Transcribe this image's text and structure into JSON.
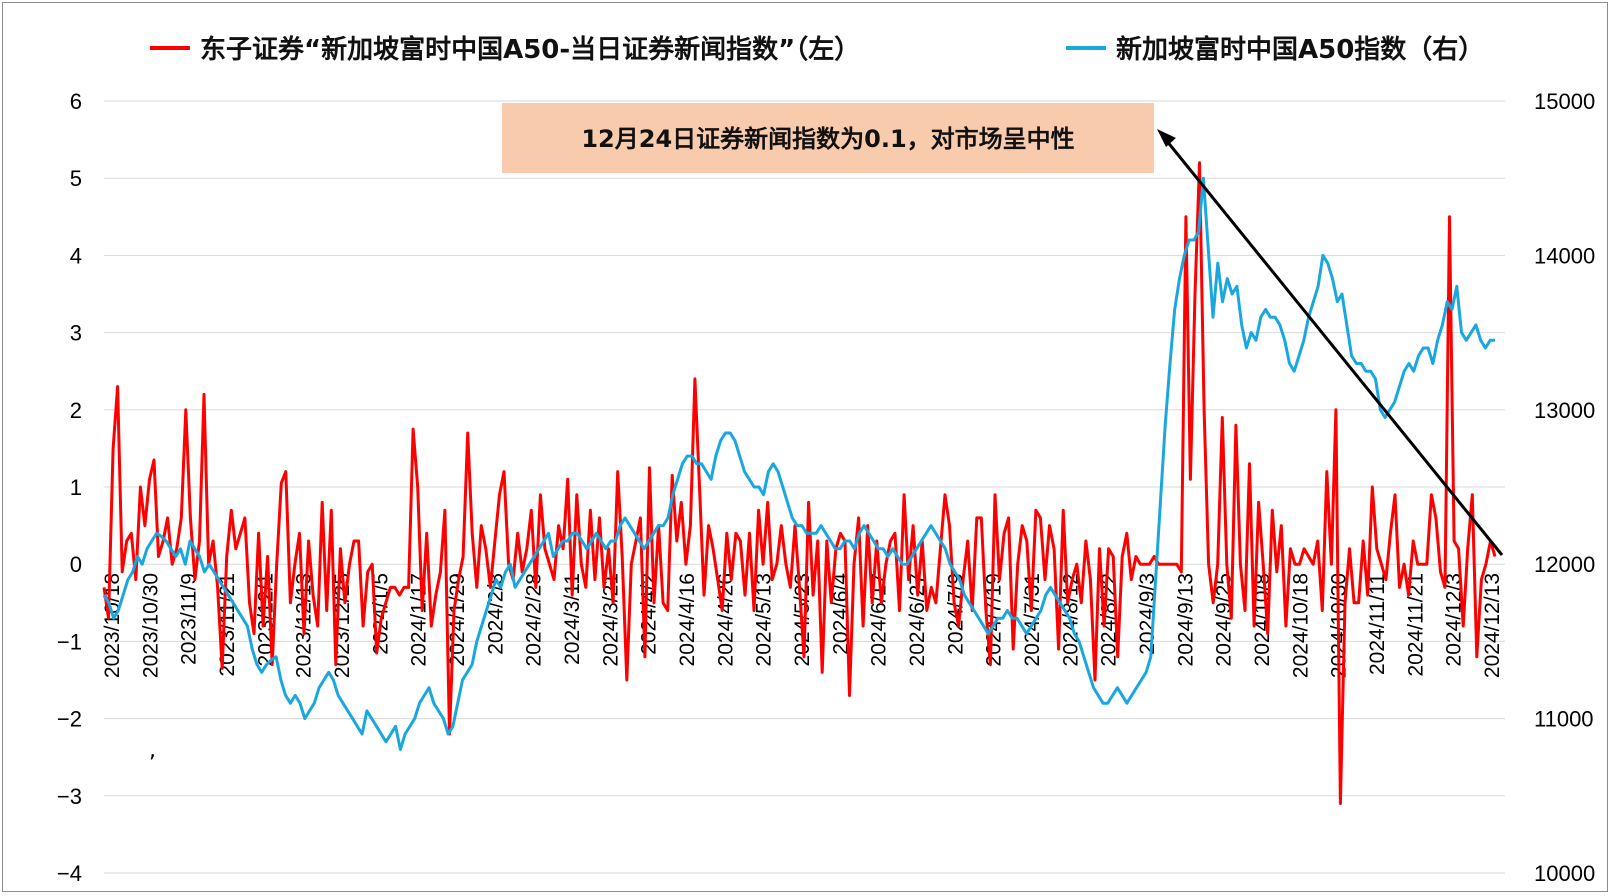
{
  "chart_data": {
    "type": "line",
    "legend": [
      {
        "label": "东子证券“新加坡富时中国A50-当日证券新闻指数”（左）",
        "color": "#ff0000"
      },
      {
        "label": "新加坡富时中国A50指数（右）",
        "color": "#1aa7e0"
      }
    ],
    "annotation": "12月24日证券新闻指数为0.1，对市场呈中性",
    "annotation_color": "#f8cbad",
    "left_axis": {
      "min": -4,
      "max": 6,
      "ticks": [
        "6",
        "5",
        "4",
        "3",
        "2",
        "1",
        "0",
        "−1",
        "−2",
        "−3",
        "−4"
      ]
    },
    "right_axis": {
      "min": 10000,
      "max": 15000,
      "ticks": [
        "15000",
        "14000",
        "13000",
        "12000",
        "11000",
        "10000"
      ]
    },
    "x_labels": [
      "2023/10/18",
      "2023/10/30",
      "2023/11/9",
      "2023/11/21",
      "2023/12/1",
      "2023/12/13",
      "2023/12/25",
      "2024/1/5",
      "2024/1/17",
      "2024/1/29",
      "2024/2/8",
      "2024/2/28",
      "2024/3/11",
      "2024/3/21",
      "2024/4/2",
      "2024/4/16",
      "2024/4/26",
      "2024/5/13",
      "2024/5/23",
      "2024/6/4",
      "2024/6/17",
      "2024/6/27",
      "2024/7/9",
      "2024/7/19",
      "2024/7/31",
      "2024/8/12",
      "2024/8/22",
      "2024/9/3",
      "2024/9/13",
      "2024/9/25",
      "2024/10/8",
      "2024/10/18",
      "2024/10/30",
      "2024/11/11",
      "2024/11/21",
      "2024/12/3",
      "2024/12/13"
    ],
    "news_index": [
      -0.3,
      -0.7,
      1.5,
      2.3,
      -0.1,
      0.3,
      0.4,
      -0.2,
      1.0,
      0.5,
      1.1,
      1.35,
      0.1,
      0.3,
      0.6,
      0.0,
      0.2,
      0.6,
      2.0,
      0.6,
      -0.2,
      0.3,
      2.2,
      0.0,
      0.3,
      -0.3,
      -1.35,
      0.1,
      0.7,
      0.2,
      0.4,
      0.6,
      -0.5,
      -0.9,
      0.4,
      -0.8,
      0.1,
      -1.3,
      0.0,
      1.05,
      1.2,
      -0.5,
      0.0,
      0.4,
      -0.9,
      0.3,
      -0.4,
      -0.8,
      0.8,
      -0.6,
      0.7,
      -1.3,
      0.2,
      -0.5,
      0.0,
      0.3,
      0.3,
      -0.8,
      -0.1,
      0.0,
      -1.15,
      -0.7,
      -0.5,
      -0.3,
      -0.3,
      -0.4,
      -0.3,
      -0.3,
      1.75,
      1.0,
      -0.6,
      0.4,
      -0.8,
      -0.4,
      -0.1,
      0.7,
      -2.2,
      -0.6,
      -0.2,
      0.1,
      1.7,
      0.4,
      -0.3,
      0.5,
      0.2,
      -0.3,
      0.3,
      0.9,
      1.2,
      0.0,
      -0.2,
      0.4,
      -0.1,
      0.2,
      0.7,
      -0.3,
      0.9,
      0.2,
      0.0,
      -0.2,
      0.5,
      0.2,
      1.1,
      -0.4,
      0.9,
      0.0,
      -0.3,
      0.7,
      -0.2,
      0.6,
      -0.3,
      0.2,
      -0.5,
      1.2,
      0.1,
      -1.5,
      0.0,
      0.3,
      0.6,
      -1.2,
      1.25,
      -0.5,
      0.5,
      -0.5,
      -0.6,
      1.15,
      0.3,
      0.8,
      0.0,
      0.5,
      2.4,
      1.0,
      -0.4,
      0.5,
      0.2,
      -0.2,
      -0.6,
      0.4,
      -0.2,
      0.4,
      0.3,
      -0.4,
      0.4,
      -0.6,
      0.7,
      0.0,
      0.8,
      -0.2,
      0.0,
      0.5,
      0.0,
      -0.3,
      0.5,
      -0.3,
      -1.2,
      0.8,
      -0.4,
      0.3,
      -1.4,
      0.3,
      -0.5,
      0.2,
      0.4,
      0.3,
      -1.7,
      0.0,
      0.6,
      -0.8,
      0.5,
      -0.5,
      0.3,
      -0.5,
      0.0,
      0.3,
      0.4,
      -0.6,
      0.9,
      -0.2,
      0.5,
      -0.4,
      0.3,
      -0.6,
      -0.3,
      -0.5,
      0.2,
      0.9,
      0.5,
      -0.5,
      -0.8,
      -0.2,
      0.3,
      -0.6,
      0.6,
      0.6,
      -0.6,
      -1.3,
      0.9,
      -0.2,
      0.4,
      0.6,
      -1.1,
      0.0,
      0.5,
      0.3,
      -0.6,
      0.7,
      0.6,
      -0.2,
      0.5,
      0.2,
      -1.1,
      0.7,
      -0.5,
      -0.2,
      0.0,
      -0.5,
      0.3,
      -0.2,
      -1.5,
      0.2,
      -0.8,
      0.2,
      0.1,
      -1.2,
      0.1,
      0.4,
      -0.2,
      0.1,
      0.0,
      0.0,
      0.0,
      0.1,
      0.0,
      0.0,
      0.0,
      0.0,
      0.0,
      -0.1,
      4.5,
      1.1,
      3.5,
      5.2,
      2.0,
      0.0,
      -0.5,
      0.0,
      1.9,
      0.0,
      -0.7,
      1.8,
      0.0,
      -0.6,
      1.3,
      -0.8,
      0.8,
      0.0,
      -0.9,
      0.7,
      -0.1,
      0.5,
      -0.8,
      0.2,
      0.0,
      0.0,
      0.2,
      0.1,
      0.0,
      0.3,
      -0.6,
      1.2,
      0.0,
      2.0,
      -3.1,
      -0.5,
      0.2,
      -0.5,
      -0.5,
      0.3,
      -0.4,
      1.0,
      0.2,
      0.0,
      -0.2,
      0.4,
      0.9,
      -0.3,
      0.0,
      -0.4,
      0.3,
      0.0,
      0.0,
      0.0,
      0.9,
      0.6,
      -0.1,
      -0.3,
      4.5,
      0.3,
      0.2,
      -0.8,
      0.2,
      0.9,
      -1.2,
      -0.2,
      0.0,
      0.3,
      0.1
    ],
    "a50_index": [
      11800,
      11750,
      11650,
      11700,
      11800,
      11900,
      11950,
      12050,
      12000,
      12100,
      12150,
      12200,
      12180,
      12150,
      12100,
      12050,
      12100,
      12000,
      12150,
      12100,
      12050,
      11950,
      12000,
      11950,
      11900,
      11850,
      11800,
      11750,
      11700,
      11650,
      11600,
      11450,
      11350,
      11300,
      11350,
      11380,
      11400,
      11250,
      11150,
      11100,
      11150,
      11100,
      11000,
      11050,
      11100,
      11200,
      11250,
      11300,
      11250,
      11150,
      11100,
      11050,
      11000,
      10950,
      10900,
      11050,
      11000,
      10950,
      10900,
      10850,
      10900,
      10950,
      10800,
      10900,
      10950,
      11000,
      11100,
      11150,
      11200,
      11100,
      11050,
      11000,
      10900,
      10950,
      11100,
      11250,
      11300,
      11350,
      11500,
      11600,
      11700,
      11800,
      11900,
      11850,
      11950,
      12000,
      11850,
      11900,
      11950,
      12000,
      12050,
      12100,
      12150,
      12200,
      12050,
      12100,
      12150,
      12150,
      12200,
      12200,
      12150,
      12100,
      12150,
      12200,
      12150,
      12100,
      12150,
      12150,
      12250,
      12300,
      12250,
      12200,
      12150,
      12100,
      12150,
      12200,
      12250,
      12250,
      12300,
      12450,
      12550,
      12650,
      12700,
      12700,
      12650,
      12650,
      12600,
      12550,
      12700,
      12800,
      12850,
      12850,
      12800,
      12700,
      12600,
      12550,
      12500,
      12500,
      12450,
      12600,
      12650,
      12600,
      12500,
      12400,
      12300,
      12250,
      12250,
      12200,
      12200,
      12200,
      12250,
      12200,
      12150,
      12100,
      12100,
      12150,
      12150,
      12100,
      12200,
      12250,
      12200,
      12150,
      12100,
      12100,
      12050,
      12100,
      12050,
      12000,
      12000,
      12050,
      12100,
      12150,
      12200,
      12250,
      12200,
      12150,
      12100,
      12000,
      11950,
      11900,
      11800,
      11750,
      11700,
      11650,
      11600,
      11550,
      11600,
      11650,
      11650,
      11700,
      11650,
      11650,
      11600,
      11550,
      11600,
      11650,
      11700,
      11800,
      11850,
      11800,
      11750,
      11700,
      11650,
      11550,
      11500,
      11400,
      11300,
      11200,
      11150,
      11100,
      11100,
      11150,
      11200,
      11150,
      11100,
      11150,
      11200,
      11250,
      11300,
      11400,
      11900,
      12400,
      12900,
      13300,
      13650,
      13850,
      14000,
      14100,
      14100,
      14150,
      14500,
      14050,
      13600,
      13950,
      13700,
      13850,
      13750,
      13800,
      13550,
      13400,
      13500,
      13450,
      13600,
      13650,
      13600,
      13600,
      13550,
      13450,
      13300,
      13250,
      13350,
      13450,
      13600,
      13700,
      13800,
      14000,
      13950,
      13850,
      13700,
      13750,
      13550,
      13350,
      13300,
      13300,
      13250,
      13250,
      13200,
      13000,
      12950,
      13000,
      13050,
      13150,
      13250,
      13300,
      13250,
      13350,
      13400,
      13400,
      13300,
      13450,
      13550,
      13700,
      13650,
      13800,
      13500,
      13450,
      13500,
      13550,
      13450,
      13400,
      13450,
      13450
    ]
  }
}
